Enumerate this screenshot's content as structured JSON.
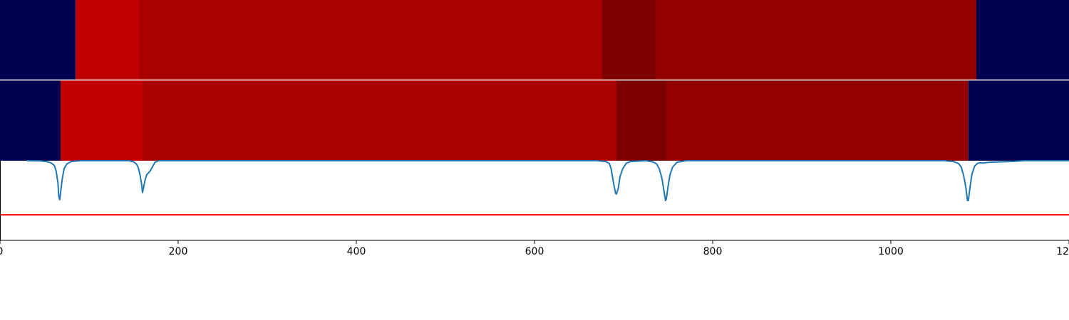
{
  "chart_data": [
    {
      "type": "heatmap",
      "segments": [
        {
          "start": 0,
          "end": 85,
          "color": "#000050"
        },
        {
          "start": 85,
          "end": 156,
          "color": "#c00000"
        },
        {
          "start": 156,
          "end": 676,
          "color": "#aa0000"
        },
        {
          "start": 676,
          "end": 736,
          "color": "#7d0000"
        },
        {
          "start": 736,
          "end": 1096,
          "color": "#930000"
        },
        {
          "start": 1096,
          "end": 1200,
          "color": "#000050"
        }
      ]
    },
    {
      "type": "heatmap",
      "segments": [
        {
          "start": 0,
          "end": 68,
          "color": "#000050"
        },
        {
          "start": 68,
          "end": 160,
          "color": "#c00000"
        },
        {
          "start": 160,
          "end": 692,
          "color": "#aa0000"
        },
        {
          "start": 692,
          "end": 748,
          "color": "#7d0000"
        },
        {
          "start": 748,
          "end": 1087,
          "color": "#930000"
        },
        {
          "start": 1087,
          "end": 1200,
          "color": "#000050"
        }
      ]
    },
    {
      "type": "line",
      "xlim": [
        0,
        1200
      ],
      "ylim": [
        0,
        1
      ],
      "x_ticks": [
        0,
        200,
        400,
        600,
        800,
        1000,
        1200
      ],
      "x_tick_labels": [
        "0",
        "200",
        "400",
        "600",
        "800",
        "1000",
        "1200"
      ],
      "series": [
        {
          "color": "#1f77b4",
          "points": [
            [
              30,
              1.0
            ],
            [
              45,
              0.997
            ],
            [
              52,
              0.99
            ],
            [
              57,
              0.975
            ],
            [
              61,
              0.94
            ],
            [
              63,
              0.87
            ],
            [
              65,
              0.72
            ],
            [
              66,
              0.55
            ],
            [
              67,
              0.51
            ],
            [
              68,
              0.6
            ],
            [
              70,
              0.78
            ],
            [
              72,
              0.9
            ],
            [
              75,
              0.96
            ],
            [
              80,
              0.99
            ],
            [
              90,
              1.0
            ],
            [
              145,
              1.0
            ],
            [
              150,
              0.985
            ],
            [
              153,
              0.96
            ],
            [
              155,
              0.92
            ],
            [
              157,
              0.83
            ],
            [
              159,
              0.7
            ],
            [
              160,
              0.6
            ],
            [
              161,
              0.65
            ],
            [
              163,
              0.77
            ],
            [
              165,
              0.83
            ],
            [
              167,
              0.85
            ],
            [
              169,
              0.88
            ],
            [
              171,
              0.92
            ],
            [
              174,
              0.98
            ],
            [
              178,
              1.0
            ],
            [
              670,
              1.0
            ],
            [
              680,
              0.99
            ],
            [
              684,
              0.965
            ],
            [
              686,
              0.9
            ],
            [
              689,
              0.7
            ],
            [
              691,
              0.59
            ],
            [
              692,
              0.58
            ],
            [
              694,
              0.65
            ],
            [
              696,
              0.8
            ],
            [
              699,
              0.9
            ],
            [
              703,
              0.97
            ],
            [
              708,
              0.99
            ],
            [
              725,
              1.0
            ],
            [
              733,
              0.985
            ],
            [
              737,
              0.96
            ],
            [
              740,
              0.9
            ],
            [
              743,
              0.78
            ],
            [
              745,
              0.64
            ],
            [
              747,
              0.5
            ],
            [
              748,
              0.52
            ],
            [
              750,
              0.68
            ],
            [
              752,
              0.82
            ],
            [
              755,
              0.92
            ],
            [
              760,
              0.98
            ],
            [
              770,
              1.0
            ],
            [
              1060,
              1.0
            ],
            [
              1070,
              0.99
            ],
            [
              1076,
              0.965
            ],
            [
              1079,
              0.92
            ],
            [
              1082,
              0.8
            ],
            [
              1084,
              0.68
            ],
            [
              1086,
              0.5
            ],
            [
              1087,
              0.5
            ],
            [
              1089,
              0.68
            ],
            [
              1091,
              0.83
            ],
            [
              1094,
              0.93
            ],
            [
              1097,
              0.965
            ],
            [
              1100,
              0.975
            ],
            [
              1103,
              0.97
            ],
            [
              1106,
              0.975
            ],
            [
              1110,
              0.98
            ],
            [
              1120,
              0.985
            ],
            [
              1135,
              0.99
            ],
            [
              1150,
              1.0
            ],
            [
              1200,
              1.0
            ]
          ]
        }
      ],
      "hlines": [
        {
          "y": 0.32,
          "color": "#ff0000"
        }
      ]
    }
  ]
}
